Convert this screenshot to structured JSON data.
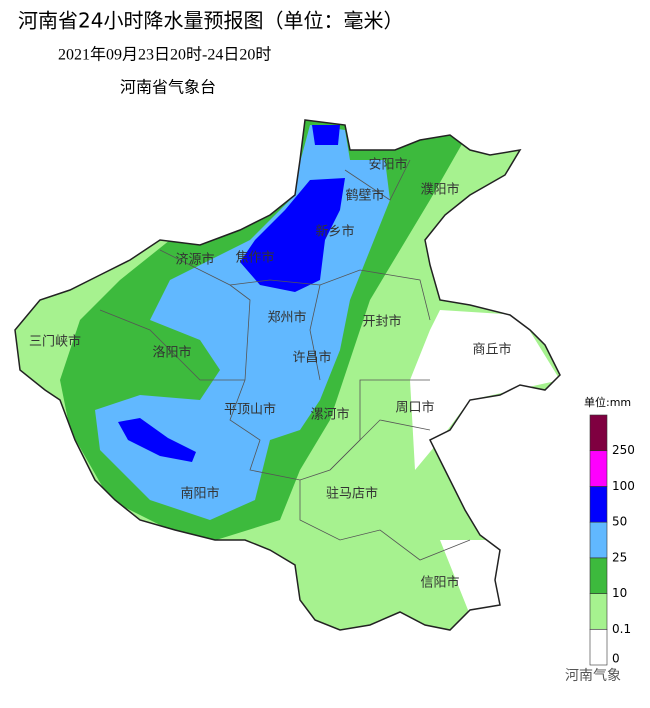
{
  "header": {
    "title": "河南省24小时降水量预报图（单位：毫米）",
    "subtitle": "2021年09月23日20时-24日20时",
    "issuer": "河南省气象台"
  },
  "cities": [
    "安阳市",
    "濮阳市",
    "鹤壁市",
    "新乡市",
    "济源市",
    "焦作市",
    "三门峡市",
    "郑州市",
    "开封市",
    "商丘市",
    "洛阳市",
    "许昌市",
    "平顶山市",
    "漯河市",
    "周口市",
    "南阳市",
    "驻马店市",
    "信阳市"
  ],
  "legend": {
    "unit": "单位:mm",
    "ticks": [
      0,
      0.1,
      10,
      25,
      50,
      100,
      250
    ],
    "colors": [
      "#ffffff",
      "#a6f28f",
      "#3dba3d",
      "#61b8ff",
      "#0000fe",
      "#fe00fe",
      "#7f0040"
    ]
  },
  "watermark": "河南气象"
}
